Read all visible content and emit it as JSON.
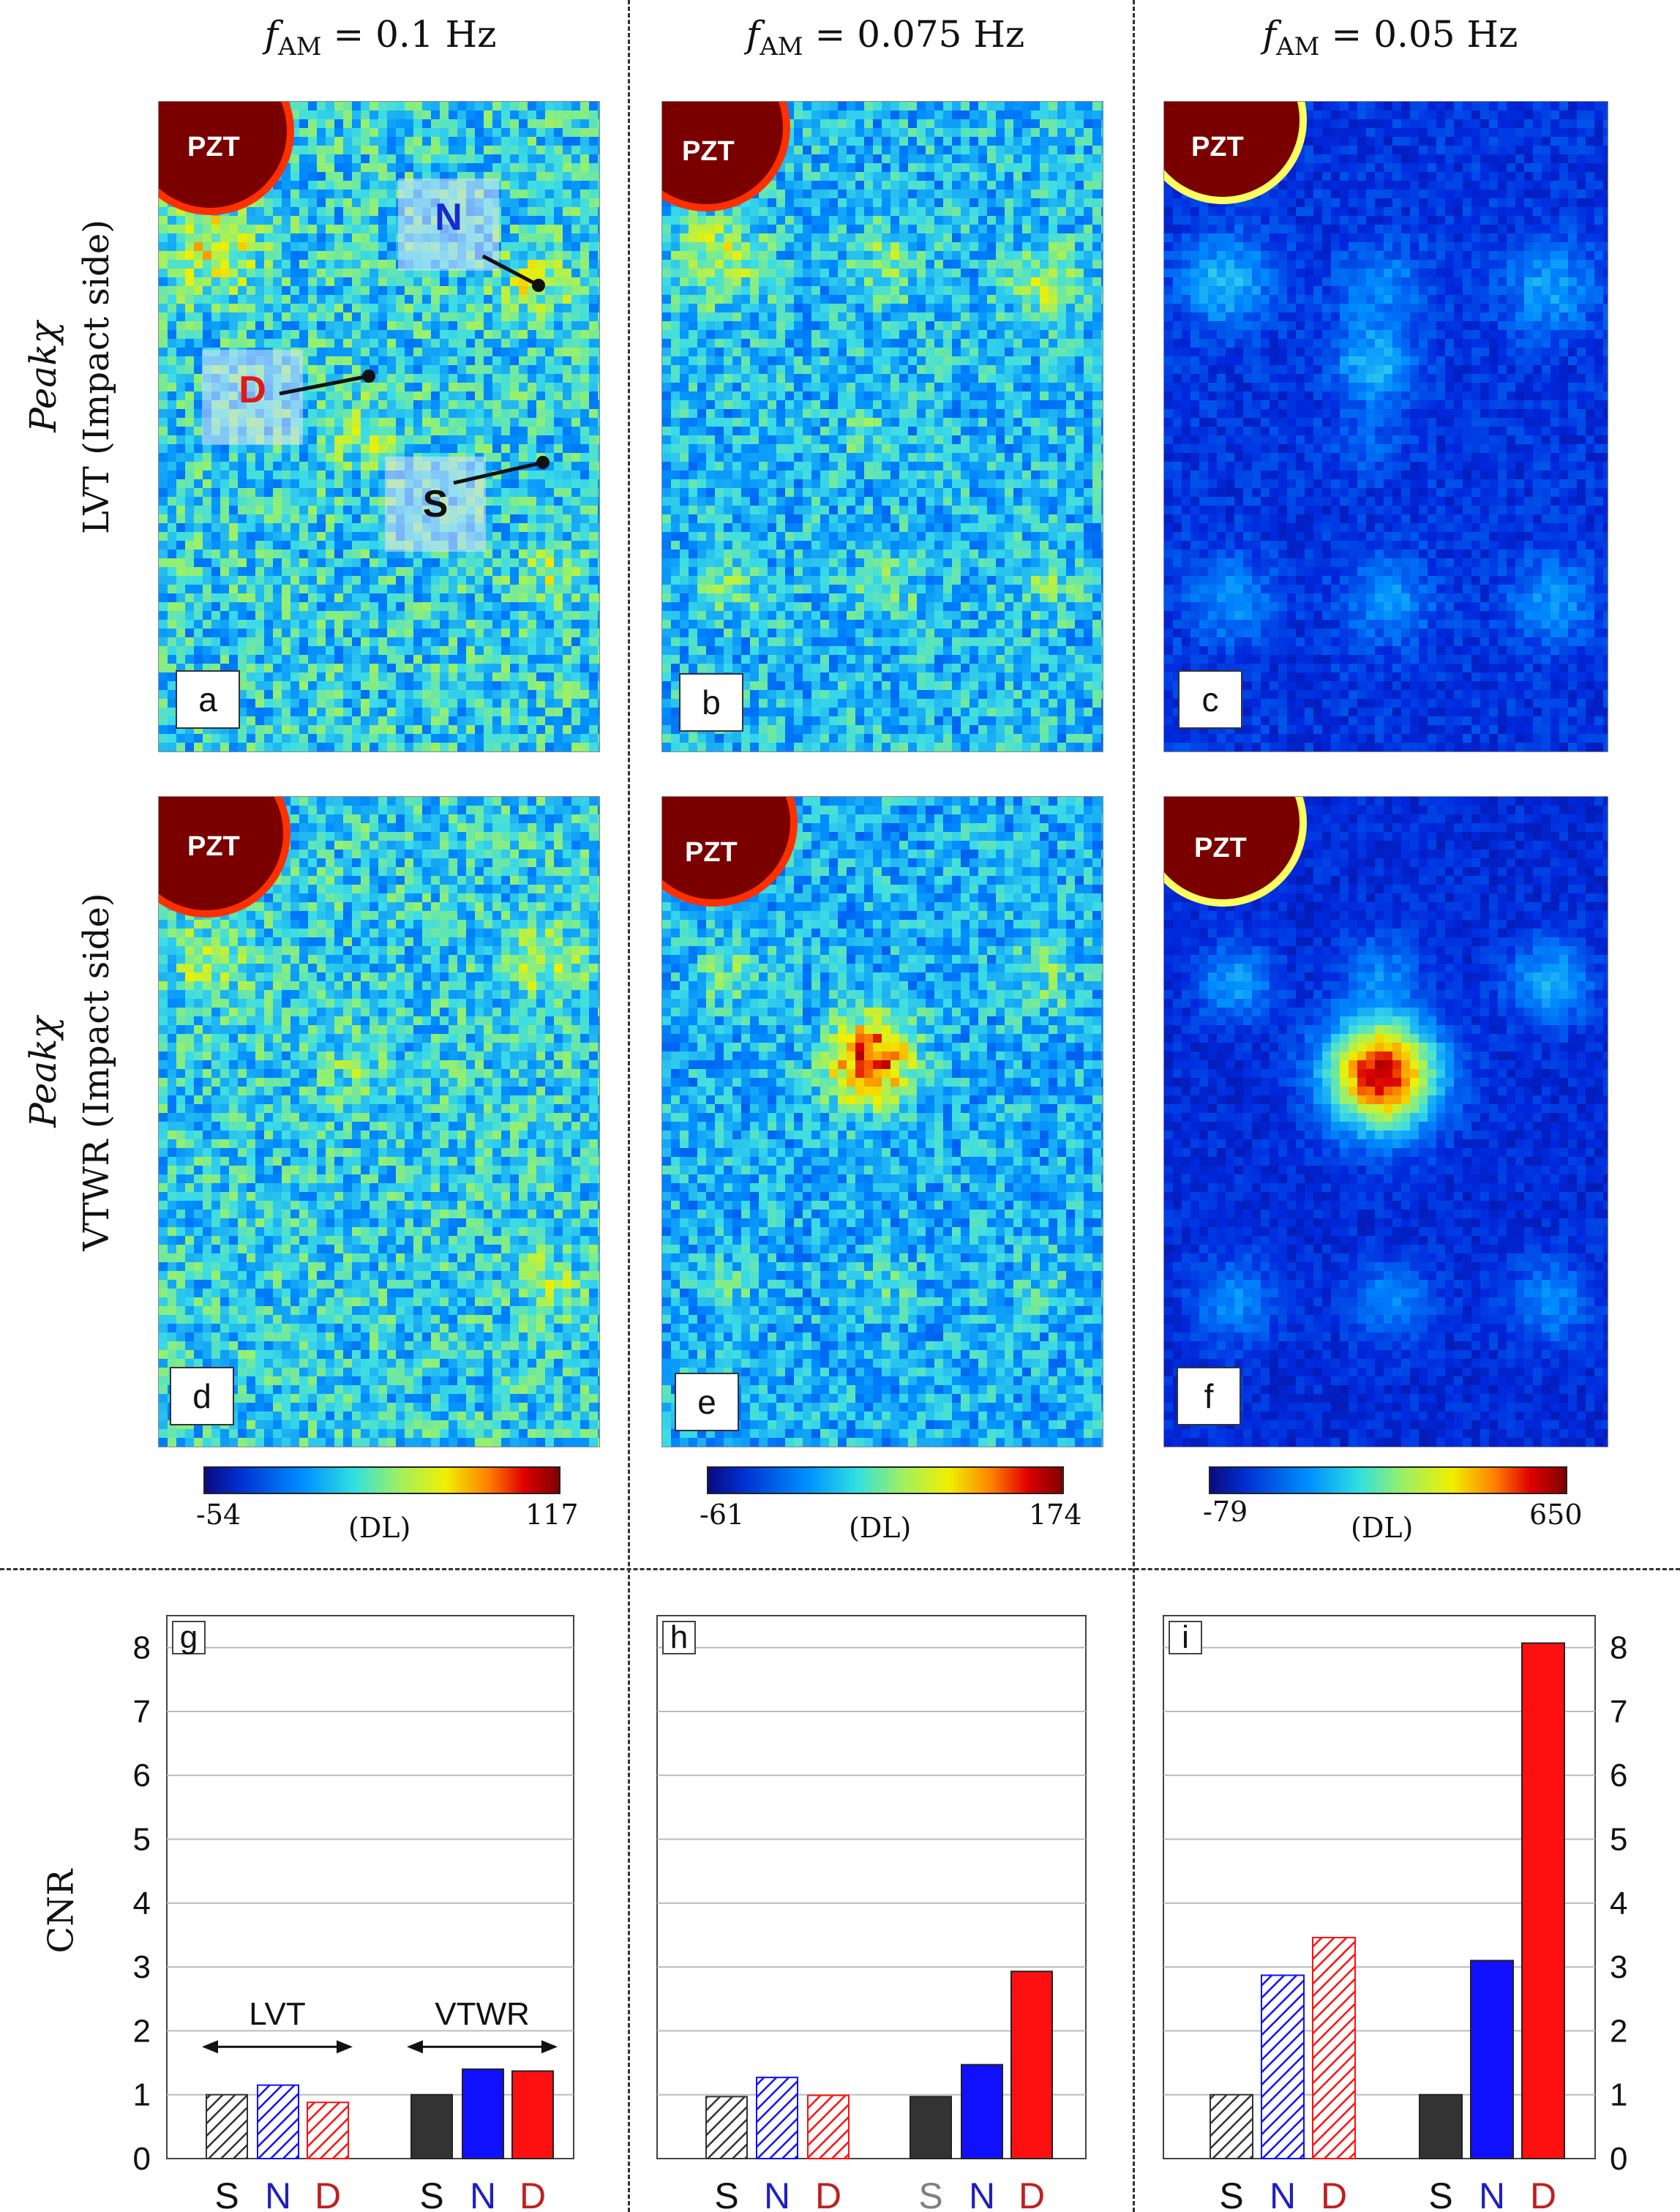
{
  "headers": {
    "var": "f",
    "sub": "AM",
    "col1": "= 0.1 Hz",
    "col2": "= 0.075 Hz",
    "col3": "= 0.05 Hz"
  },
  "rows": {
    "peak": "Peakχ",
    "row1_method": "LVT (Impact side)",
    "row2_method": "VTWR (Impact side)"
  },
  "panels": {
    "a": "a",
    "b": "b",
    "c": "c",
    "d": "d",
    "e": "e",
    "f": "f",
    "g": "g",
    "h": "h",
    "i": "i"
  },
  "pzt": "PZT",
  "markers": {
    "n": "N",
    "d": "D",
    "s": "S"
  },
  "colorbars": [
    {
      "min": "-54",
      "max": "117",
      "unit": "(DL)"
    },
    {
      "min": "-61",
      "max": "174",
      "unit": "(DL)"
    },
    {
      "min": "-79",
      "max": "650",
      "unit": "(DL)"
    }
  ],
  "colors": {
    "S": "#333333",
    "N": "#1010ff",
    "D": "#ff1010",
    "label_S": "#111111",
    "label_N": "#2020c0",
    "label_D": "#c02020",
    "label_S_grey": "#808080"
  },
  "chart_data": [
    {
      "type": "bar",
      "panel": "g",
      "ylabel": "CNR",
      "ylim": [
        0,
        8.5
      ],
      "yticks": [
        0,
        1,
        2,
        3,
        4,
        5,
        6,
        7,
        8
      ],
      "groups": [
        "LVT",
        "VTWR"
      ],
      "categories": [
        "S",
        "N",
        "D",
        "S",
        "N",
        "D"
      ],
      "values": [
        1.0,
        1.15,
        0.88,
        1.0,
        1.4,
        1.37
      ],
      "hatched": [
        true,
        true,
        true,
        false,
        false,
        false
      ],
      "group_labels": [
        "LVT",
        "VTWR"
      ]
    },
    {
      "type": "bar",
      "panel": "h",
      "ylim": [
        0,
        8.5
      ],
      "yticks": [
        0,
        1,
        2,
        3,
        4,
        5,
        6,
        7,
        8
      ],
      "categories": [
        "S",
        "N",
        "D",
        "S",
        "N",
        "D"
      ],
      "values": [
        0.97,
        1.27,
        0.99,
        0.97,
        1.47,
        2.93
      ],
      "hatched": [
        true,
        true,
        true,
        false,
        false,
        false
      ]
    },
    {
      "type": "bar",
      "panel": "i",
      "ylim": [
        0,
        8.5
      ],
      "yticks": [
        0,
        1,
        2,
        3,
        4,
        5,
        6,
        7,
        8
      ],
      "categories": [
        "S",
        "N",
        "D",
        "S",
        "N",
        "D"
      ],
      "values": [
        1.0,
        2.87,
        3.46,
        1.0,
        3.1,
        8.07
      ],
      "hatched": [
        true,
        true,
        true,
        false,
        false,
        false
      ]
    }
  ]
}
